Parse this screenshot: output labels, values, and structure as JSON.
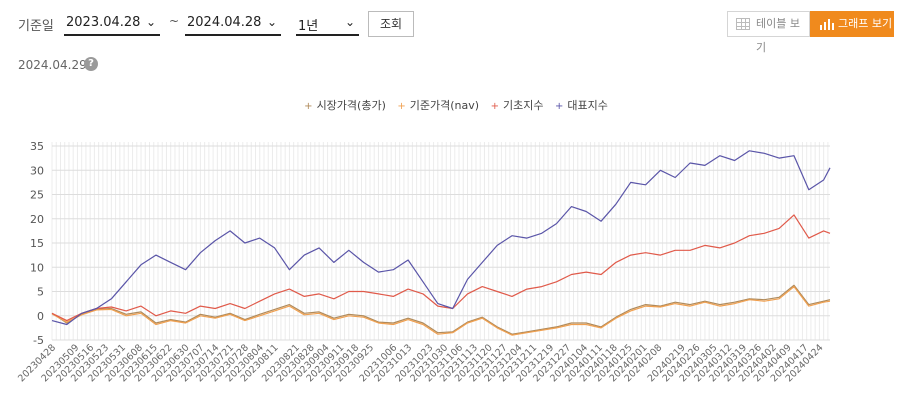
{
  "controls": {
    "period_label": "기준일",
    "start_date": "2023.04.28",
    "tilde": "~",
    "end_date": "2024.04.28",
    "range": "1년",
    "search_label": "조회",
    "table_view_label": "테이블 보기",
    "graph_view_label": "그래프 보기",
    "active_color": "#f08a1d"
  },
  "as_of_date": "2024.04.29",
  "help_icon_label": "?",
  "chart_data": {
    "type": "line",
    "title": "",
    "xlabel": "",
    "ylabel": "",
    "ylim": [
      -5,
      35
    ],
    "yticks": [
      -5,
      0,
      5,
      10,
      15,
      20,
      25,
      30,
      35
    ],
    "grid": true,
    "legend_position": "top-center",
    "x_start": "2023-04-28",
    "x_end": "2024-04-29",
    "x_tick_labels": [
      "20230428",
      "20230509",
      "20230516",
      "20230523",
      "20230531",
      "20230608",
      "20230615",
      "20230622",
      "20230630",
      "20230707",
      "20230714",
      "20230721",
      "20230728",
      "20230804",
      "20230811",
      "20230821",
      "20230828",
      "20230904",
      "20230911",
      "20230918",
      "20230925",
      "20231006",
      "20231013",
      "20231023",
      "20231030",
      "20231106",
      "20231113",
      "20231120",
      "20231127",
      "20231204",
      "20231211",
      "20231219",
      "20231227",
      "20240104",
      "20240111",
      "20240118",
      "20240125",
      "20240201",
      "20240208",
      "20240219",
      "20240226",
      "20240305",
      "20240312",
      "20240319",
      "20240326",
      "20240402",
      "20240409",
      "20240417",
      "20240424"
    ],
    "x_tick_dates": [
      "2023-04-28",
      "2023-05-09",
      "2023-05-16",
      "2023-05-23",
      "2023-05-31",
      "2023-06-08",
      "2023-06-15",
      "2023-06-22",
      "2023-06-30",
      "2023-07-07",
      "2023-07-14",
      "2023-07-21",
      "2023-07-28",
      "2023-08-04",
      "2023-08-11",
      "2023-08-21",
      "2023-08-28",
      "2023-09-04",
      "2023-09-11",
      "2023-09-18",
      "2023-09-25",
      "2023-10-06",
      "2023-10-13",
      "2023-10-23",
      "2023-10-30",
      "2023-11-06",
      "2023-11-13",
      "2023-11-20",
      "2023-11-27",
      "2023-12-04",
      "2023-12-11",
      "2023-12-19",
      "2023-12-27",
      "2024-01-04",
      "2024-01-11",
      "2024-01-18",
      "2024-01-25",
      "2024-02-01",
      "2024-02-08",
      "2024-02-19",
      "2024-02-26",
      "2024-03-05",
      "2024-03-12",
      "2024-03-19",
      "2024-03-26",
      "2024-04-02",
      "2024-04-09",
      "2024-04-17",
      "2024-04-24"
    ],
    "series": [
      {
        "name": "시장가격(총가)",
        "color": "#b08a5a",
        "marker": "+",
        "points": [
          [
            "2023-04-28",
            0.5
          ],
          [
            "2023-05-05",
            -1.5
          ],
          [
            "2023-05-12",
            0.3
          ],
          [
            "2023-05-19",
            1.3
          ],
          [
            "2023-05-26",
            1.5
          ],
          [
            "2023-06-02",
            0.3
          ],
          [
            "2023-06-09",
            0.8
          ],
          [
            "2023-06-16",
            -1.5
          ],
          [
            "2023-06-23",
            -0.8
          ],
          [
            "2023-06-30",
            -1.3
          ],
          [
            "2023-07-07",
            0.3
          ],
          [
            "2023-07-14",
            -0.3
          ],
          [
            "2023-07-21",
            0.5
          ],
          [
            "2023-07-28",
            -0.8
          ],
          [
            "2023-08-04",
            0.3
          ],
          [
            "2023-08-11",
            1.3
          ],
          [
            "2023-08-18",
            2.3
          ],
          [
            "2023-08-25",
            0.5
          ],
          [
            "2023-09-01",
            0.8
          ],
          [
            "2023-09-08",
            -0.5
          ],
          [
            "2023-09-15",
            0.3
          ],
          [
            "2023-09-22",
            0.0
          ],
          [
            "2023-09-29",
            -1.3
          ],
          [
            "2023-10-06",
            -1.5
          ],
          [
            "2023-10-13",
            -0.5
          ],
          [
            "2023-10-20",
            -1.5
          ],
          [
            "2023-10-27",
            -3.5
          ],
          [
            "2023-11-03",
            -3.3
          ],
          [
            "2023-11-10",
            -1.3
          ],
          [
            "2023-11-17",
            -0.3
          ],
          [
            "2023-11-24",
            -2.3
          ],
          [
            "2023-12-01",
            -3.8
          ],
          [
            "2023-12-08",
            -3.3
          ],
          [
            "2023-12-15",
            -2.8
          ],
          [
            "2023-12-22",
            -2.3
          ],
          [
            "2023-12-29",
            -1.5
          ],
          [
            "2024-01-05",
            -1.5
          ],
          [
            "2024-01-12",
            -2.3
          ],
          [
            "2024-01-19",
            -0.3
          ],
          [
            "2024-01-26",
            1.3
          ],
          [
            "2024-02-02",
            2.3
          ],
          [
            "2024-02-09",
            2.0
          ],
          [
            "2024-02-16",
            2.8
          ],
          [
            "2024-02-23",
            2.3
          ],
          [
            "2024-03-01",
            3.0
          ],
          [
            "2024-03-08",
            2.3
          ],
          [
            "2024-03-15",
            2.8
          ],
          [
            "2024-03-22",
            3.5
          ],
          [
            "2024-03-29",
            3.3
          ],
          [
            "2024-04-05",
            3.8
          ],
          [
            "2024-04-12",
            6.3
          ],
          [
            "2024-04-19",
            2.3
          ],
          [
            "2024-04-26",
            3.0
          ],
          [
            "2024-04-29",
            3.3
          ]
        ]
      },
      {
        "name": "기준가격(nav)",
        "color": "#f0a050",
        "marker": "+",
        "points": [
          [
            "2023-04-28",
            0.4
          ],
          [
            "2023-05-05",
            -1.3
          ],
          [
            "2023-05-12",
            0.2
          ],
          [
            "2023-05-19",
            1.2
          ],
          [
            "2023-05-26",
            1.3
          ],
          [
            "2023-06-02",
            0.0
          ],
          [
            "2023-06-09",
            0.5
          ],
          [
            "2023-06-16",
            -1.8
          ],
          [
            "2023-06-23",
            -1.0
          ],
          [
            "2023-06-30",
            -1.5
          ],
          [
            "2023-07-07",
            0.0
          ],
          [
            "2023-07-14",
            -0.5
          ],
          [
            "2023-07-21",
            0.3
          ],
          [
            "2023-07-28",
            -1.0
          ],
          [
            "2023-08-04",
            0.0
          ],
          [
            "2023-08-11",
            1.0
          ],
          [
            "2023-08-18",
            2.0
          ],
          [
            "2023-08-25",
            0.2
          ],
          [
            "2023-09-01",
            0.5
          ],
          [
            "2023-09-08",
            -0.8
          ],
          [
            "2023-09-15",
            0.0
          ],
          [
            "2023-09-22",
            -0.3
          ],
          [
            "2023-09-29",
            -1.5
          ],
          [
            "2023-10-06",
            -1.8
          ],
          [
            "2023-10-13",
            -0.8
          ],
          [
            "2023-10-20",
            -1.8
          ],
          [
            "2023-10-27",
            -3.8
          ],
          [
            "2023-11-03",
            -3.5
          ],
          [
            "2023-11-10",
            -1.5
          ],
          [
            "2023-11-17",
            -0.5
          ],
          [
            "2023-11-24",
            -2.5
          ],
          [
            "2023-12-01",
            -4.0
          ],
          [
            "2023-12-08",
            -3.5
          ],
          [
            "2023-12-15",
            -3.0
          ],
          [
            "2023-12-22",
            -2.5
          ],
          [
            "2023-12-29",
            -1.8
          ],
          [
            "2024-01-05",
            -1.8
          ],
          [
            "2024-01-12",
            -2.5
          ],
          [
            "2024-01-19",
            -0.5
          ],
          [
            "2024-01-26",
            1.0
          ],
          [
            "2024-02-02",
            2.0
          ],
          [
            "2024-02-09",
            1.8
          ],
          [
            "2024-02-16",
            2.5
          ],
          [
            "2024-02-23",
            2.0
          ],
          [
            "2024-03-01",
            2.8
          ],
          [
            "2024-03-08",
            2.0
          ],
          [
            "2024-03-15",
            2.5
          ],
          [
            "2024-03-22",
            3.3
          ],
          [
            "2024-03-29",
            3.0
          ],
          [
            "2024-04-05",
            3.5
          ],
          [
            "2024-04-12",
            6.0
          ],
          [
            "2024-04-19",
            2.0
          ],
          [
            "2024-04-26",
            2.8
          ],
          [
            "2024-04-29",
            3.0
          ]
        ]
      },
      {
        "name": "기초지수",
        "color": "#e05a4a",
        "marker": "+",
        "points": [
          [
            "2023-04-28",
            0.5
          ],
          [
            "2023-05-05",
            -1.0
          ],
          [
            "2023-05-12",
            0.5
          ],
          [
            "2023-05-19",
            1.5
          ],
          [
            "2023-05-26",
            1.8
          ],
          [
            "2023-06-02",
            1.0
          ],
          [
            "2023-06-09",
            2.0
          ],
          [
            "2023-06-16",
            0.0
          ],
          [
            "2023-06-23",
            1.0
          ],
          [
            "2023-06-30",
            0.5
          ],
          [
            "2023-07-07",
            2.0
          ],
          [
            "2023-07-14",
            1.5
          ],
          [
            "2023-07-21",
            2.5
          ],
          [
            "2023-07-28",
            1.5
          ],
          [
            "2023-08-04",
            3.0
          ],
          [
            "2023-08-11",
            4.5
          ],
          [
            "2023-08-18",
            5.5
          ],
          [
            "2023-08-25",
            4.0
          ],
          [
            "2023-09-01",
            4.5
          ],
          [
            "2023-09-08",
            3.5
          ],
          [
            "2023-09-15",
            5.0
          ],
          [
            "2023-09-22",
            5.0
          ],
          [
            "2023-09-29",
            4.5
          ],
          [
            "2023-10-06",
            4.0
          ],
          [
            "2023-10-13",
            5.5
          ],
          [
            "2023-10-20",
            4.5
          ],
          [
            "2023-10-27",
            2.0
          ],
          [
            "2023-11-03",
            1.5
          ],
          [
            "2023-11-10",
            4.5
          ],
          [
            "2023-11-17",
            6.0
          ],
          [
            "2023-11-24",
            5.0
          ],
          [
            "2023-12-01",
            4.0
          ],
          [
            "2023-12-08",
            5.5
          ],
          [
            "2023-12-15",
            6.0
          ],
          [
            "2023-12-22",
            7.0
          ],
          [
            "2023-12-29",
            8.5
          ],
          [
            "2024-01-05",
            9.0
          ],
          [
            "2024-01-12",
            8.5
          ],
          [
            "2024-01-19",
            11.0
          ],
          [
            "2024-01-26",
            12.5
          ],
          [
            "2024-02-02",
            13.0
          ],
          [
            "2024-02-09",
            12.5
          ],
          [
            "2024-02-16",
            13.5
          ],
          [
            "2024-02-23",
            13.5
          ],
          [
            "2024-03-01",
            14.5
          ],
          [
            "2024-03-08",
            14.0
          ],
          [
            "2024-03-15",
            15.0
          ],
          [
            "2024-03-22",
            16.5
          ],
          [
            "2024-03-29",
            17.0
          ],
          [
            "2024-04-05",
            18.0
          ],
          [
            "2024-04-12",
            20.8
          ],
          [
            "2024-04-19",
            16.0
          ],
          [
            "2024-04-26",
            17.5
          ],
          [
            "2024-04-29",
            17.0
          ]
        ]
      },
      {
        "name": "대표지수",
        "color": "#5a55a8",
        "marker": "+",
        "points": [
          [
            "2023-04-28",
            -1.0
          ],
          [
            "2023-05-05",
            -1.8
          ],
          [
            "2023-05-12",
            0.5
          ],
          [
            "2023-05-19",
            1.5
          ],
          [
            "2023-05-26",
            3.5
          ],
          [
            "2023-06-02",
            7.0
          ],
          [
            "2023-06-09",
            10.5
          ],
          [
            "2023-06-16",
            12.5
          ],
          [
            "2023-06-23",
            11.0
          ],
          [
            "2023-06-30",
            9.5
          ],
          [
            "2023-07-07",
            13.0
          ],
          [
            "2023-07-14",
            15.5
          ],
          [
            "2023-07-21",
            17.5
          ],
          [
            "2023-07-28",
            15.0
          ],
          [
            "2023-08-04",
            16.0
          ],
          [
            "2023-08-11",
            14.0
          ],
          [
            "2023-08-18",
            9.5
          ],
          [
            "2023-08-25",
            12.5
          ],
          [
            "2023-09-01",
            14.0
          ],
          [
            "2023-09-08",
            11.0
          ],
          [
            "2023-09-15",
            13.5
          ],
          [
            "2023-09-22",
            11.0
          ],
          [
            "2023-09-29",
            9.0
          ],
          [
            "2023-10-06",
            9.5
          ],
          [
            "2023-10-13",
            11.5
          ],
          [
            "2023-10-20",
            7.0
          ],
          [
            "2023-10-27",
            2.5
          ],
          [
            "2023-11-03",
            1.5
          ],
          [
            "2023-11-10",
            7.5
          ],
          [
            "2023-11-17",
            11.0
          ],
          [
            "2023-11-24",
            14.5
          ],
          [
            "2023-12-01",
            16.5
          ],
          [
            "2023-12-08",
            16.0
          ],
          [
            "2023-12-15",
            17.0
          ],
          [
            "2023-12-22",
            19.0
          ],
          [
            "2023-12-29",
            22.5
          ],
          [
            "2024-01-05",
            21.5
          ],
          [
            "2024-01-12",
            19.5
          ],
          [
            "2024-01-19",
            23.0
          ],
          [
            "2024-01-26",
            27.5
          ],
          [
            "2024-02-02",
            27.0
          ],
          [
            "2024-02-09",
            30.0
          ],
          [
            "2024-02-16",
            28.5
          ],
          [
            "2024-02-23",
            31.5
          ],
          [
            "2024-03-01",
            31.0
          ],
          [
            "2024-03-08",
            33.0
          ],
          [
            "2024-03-15",
            32.0
          ],
          [
            "2024-03-22",
            34.0
          ],
          [
            "2024-03-29",
            33.5
          ],
          [
            "2024-04-05",
            32.5
          ],
          [
            "2024-04-12",
            33.0
          ],
          [
            "2024-04-19",
            26.0
          ],
          [
            "2024-04-26",
            28.0
          ],
          [
            "2024-04-29",
            30.5
          ]
        ]
      }
    ]
  }
}
